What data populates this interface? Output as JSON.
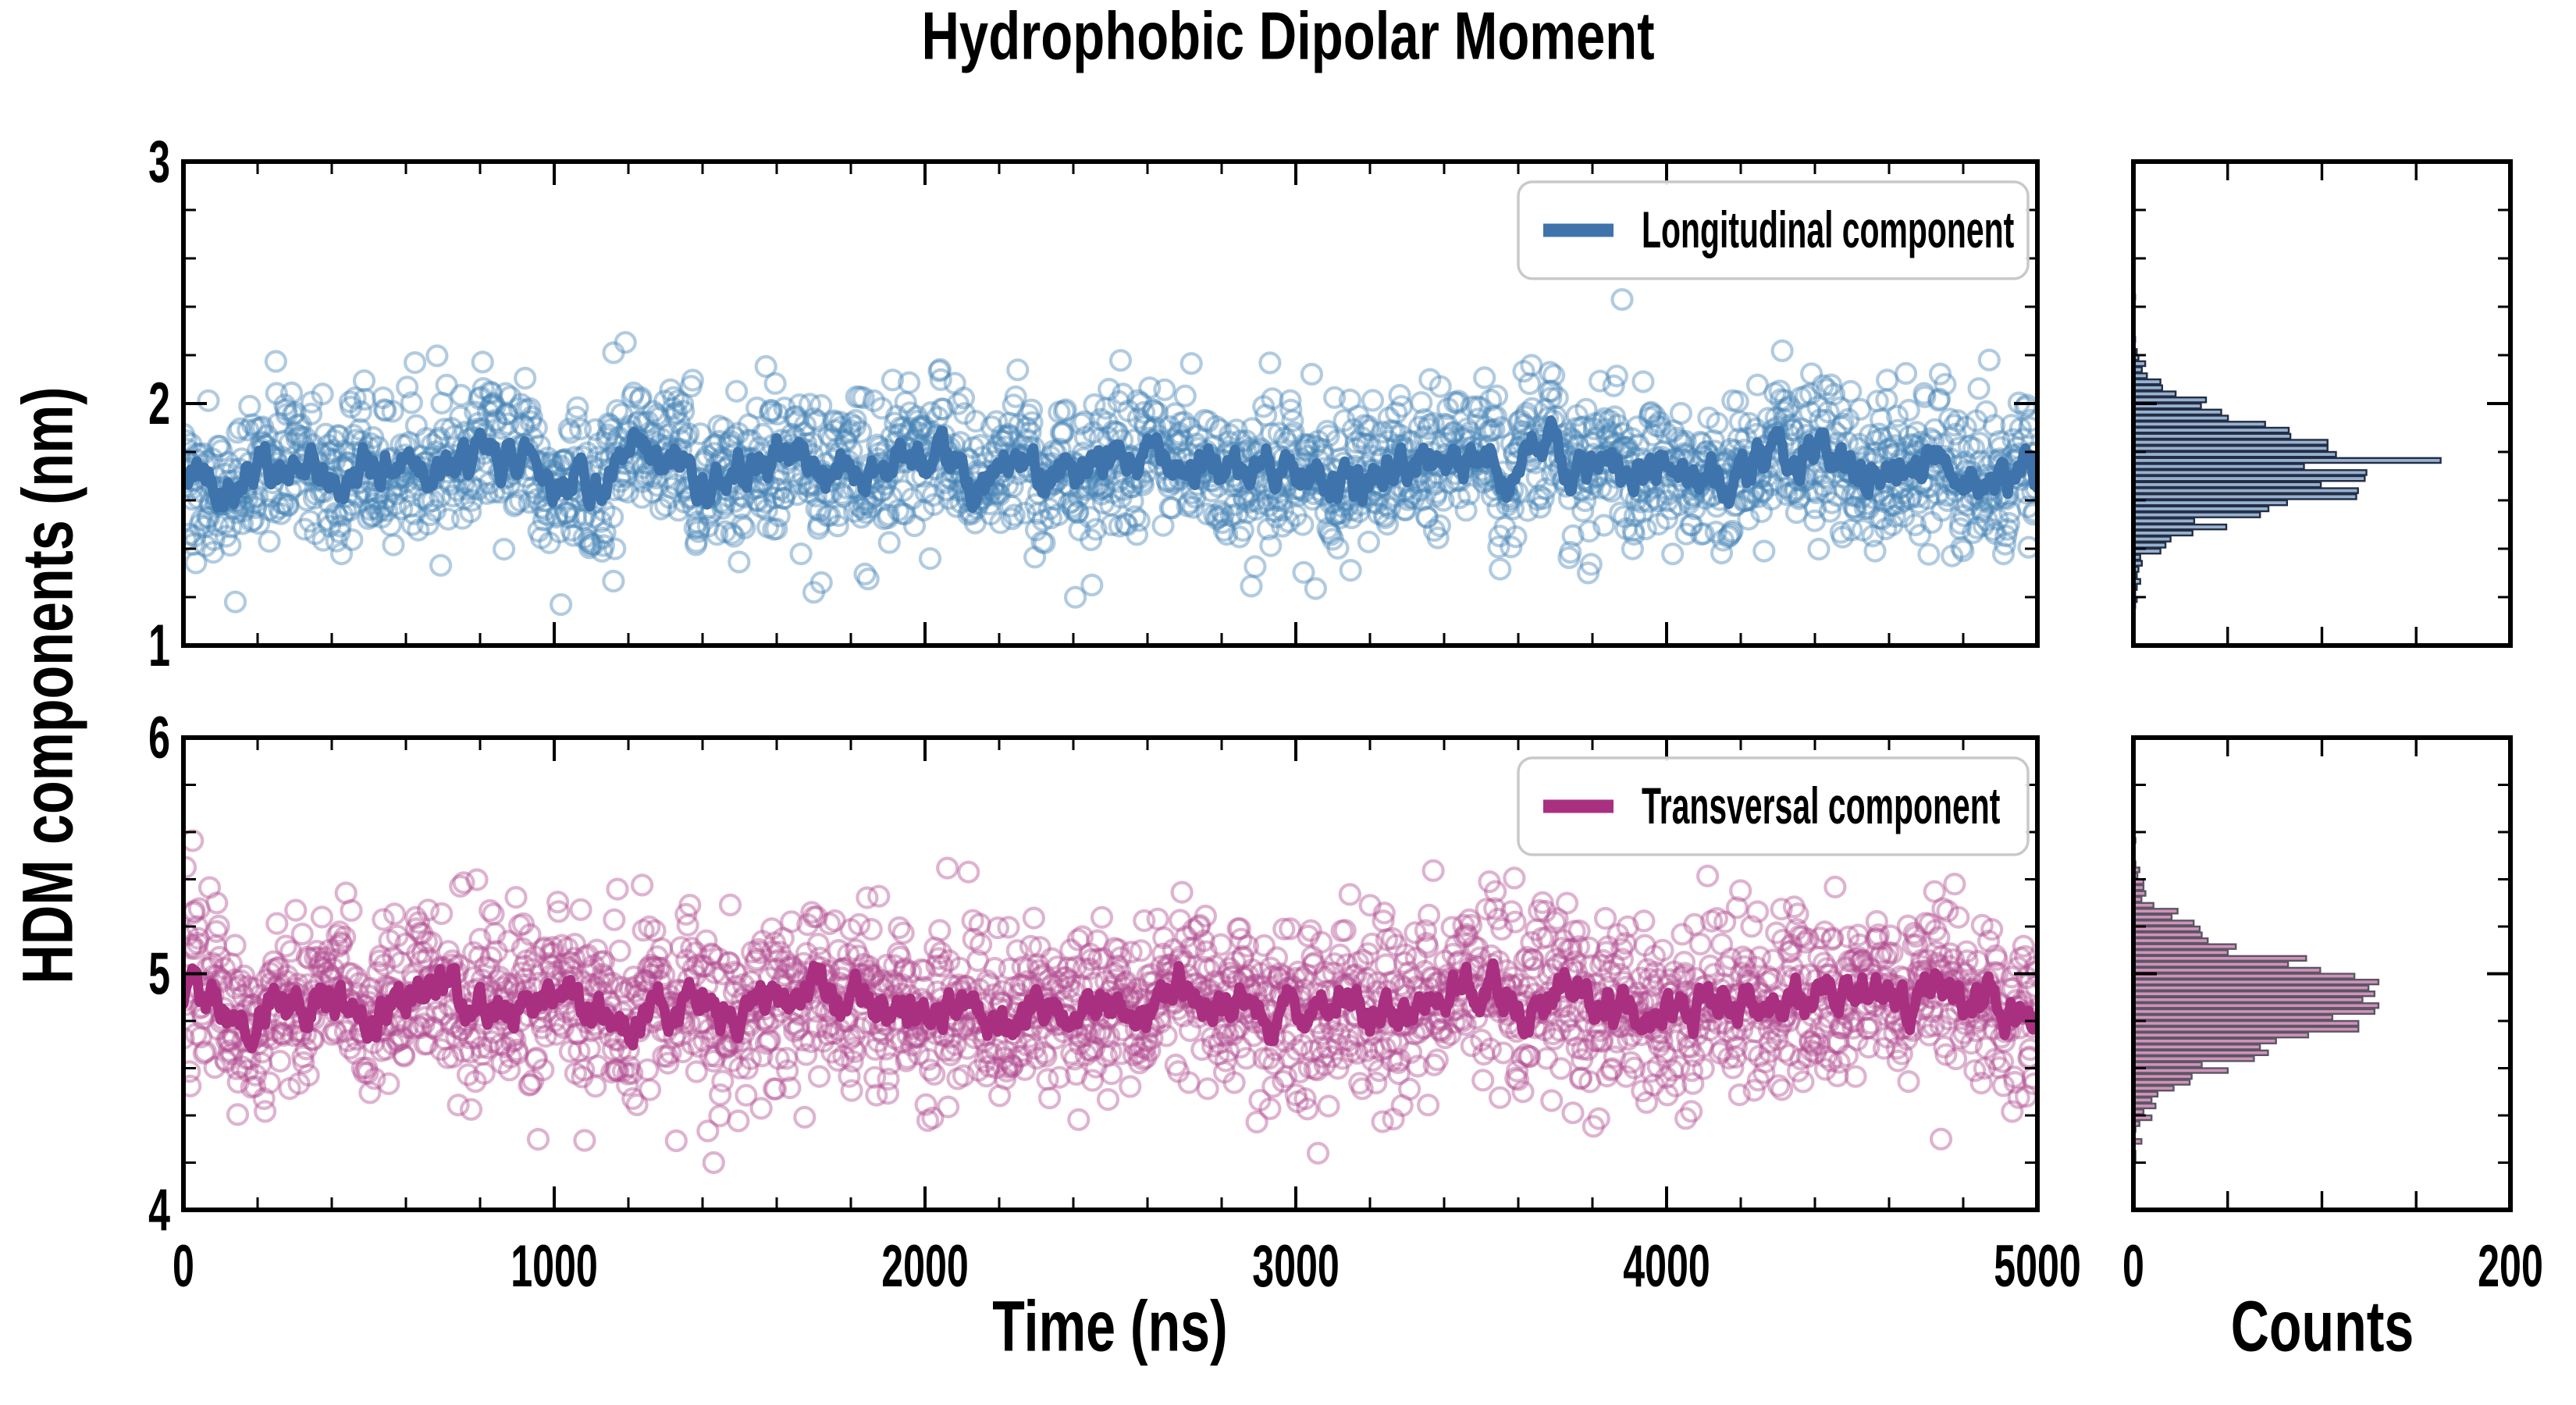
{
  "chart_data": {
    "type": "scatter+line with marginal histograms",
    "title": "Hydrophobic Dipolar Moment",
    "xlabel": "Time (ns)",
    "ylabel": "HDM components (nm)",
    "counts_label": "Counts",
    "background": "#ffffff",
    "frame_color": "#000000",
    "x_axis": {
      "range": [
        0,
        5000
      ],
      "major_ticks": [
        0,
        1000,
        2000,
        3000,
        4000,
        5000
      ],
      "minor_step": 200
    },
    "counts_axis": {
      "range": [
        0,
        200
      ],
      "major_ticks": [
        0,
        200
      ],
      "minor_step": 50
    },
    "panels": [
      {
        "name": "longitudinal",
        "legend": "Longitudinal component",
        "y_axis": {
          "range": [
            1,
            3
          ],
          "major_ticks": [
            1,
            2,
            3
          ],
          "minor_step": 0.2
        },
        "scatter": {
          "n": 2270,
          "mean": 1.73,
          "std": 0.15,
          "color": "#4682b4",
          "opacity": 0.42
        },
        "line": {
          "mean": 1.73,
          "fluctuation": 0.07,
          "color": "#3e74ab",
          "width": 13
        },
        "outliers": [
          [
            1160,
            2.21
          ],
          [
            3880,
            2.43
          ],
          [
            140,
            1.18
          ],
          [
            1700,
            1.22
          ],
          [
            2450,
            1.25
          ],
          [
            4870,
            2.18
          ]
        ],
        "histogram": {
          "bin_width": 0.025,
          "peak_count": 163,
          "fill": "#97b1cf",
          "edge": "#232e45"
        }
      },
      {
        "name": "transversal",
        "legend": "Transversal component",
        "y_axis": {
          "range": [
            4,
            6
          ],
          "major_ticks": [
            4,
            5,
            6
          ],
          "minor_step": 0.2
        },
        "scatter": {
          "n": 2270,
          "mean": 4.87,
          "std": 0.18,
          "color": "#b14a90",
          "opacity": 0.42
        },
        "line": {
          "mean": 4.87,
          "fluctuation": 0.07,
          "color": "#a93080",
          "width": 13
        },
        "outliers": [
          [
            90,
            5.3
          ],
          [
            1430,
            4.2
          ],
          [
            3060,
            4.24
          ],
          [
            4190,
            5.28
          ],
          [
            660,
            5.27
          ],
          [
            4740,
            4.3
          ]
        ],
        "histogram": {
          "bin_width": 0.025,
          "peak_count": 130,
          "fill": "#d093b8",
          "edge": "#5c5566"
        }
      }
    ],
    "legend_style": {
      "border": "#c9c9c9",
      "fill": "#ffffff"
    }
  }
}
